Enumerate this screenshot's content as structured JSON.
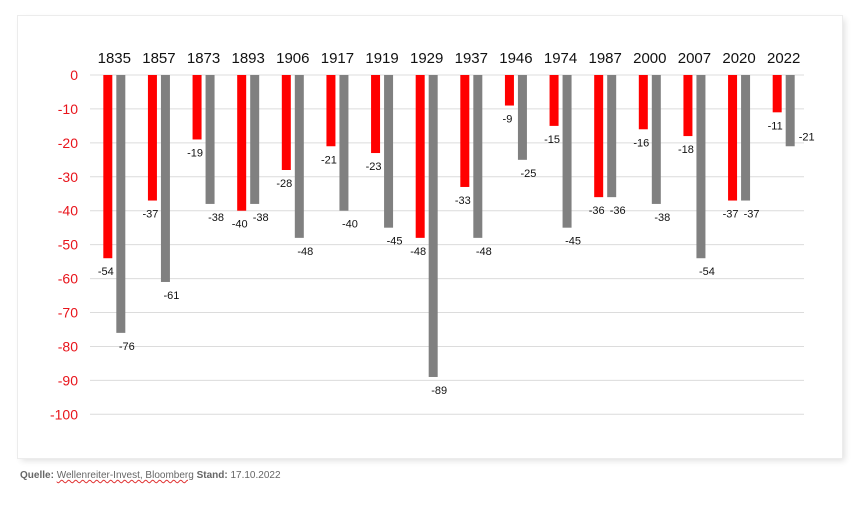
{
  "chart_data": {
    "type": "bar",
    "title": "",
    "xlabel": "",
    "ylabel": "",
    "ylim": [
      -100,
      0
    ],
    "yticks": [
      0,
      -10,
      -20,
      -30,
      -40,
      -50,
      -60,
      -70,
      -80,
      -90,
      -100
    ],
    "categories": [
      "1835",
      "1857",
      "1873",
      "1893",
      "1906",
      "1917",
      "1919",
      "1929",
      "1937",
      "1946",
      "1974",
      "1987",
      "2000",
      "2007",
      "2020",
      "2022"
    ],
    "series": [
      {
        "name": "red",
        "color": "#ff0000",
        "values": [
          -54,
          -37,
          -19,
          -40,
          -28,
          -21,
          -23,
          -48,
          -33,
          -9,
          -15,
          -36,
          -16,
          -18,
          -37,
          -11
        ]
      },
      {
        "name": "gray",
        "color": "#808080",
        "values": [
          -76,
          -61,
          -38,
          -38,
          -48,
          -40,
          -45,
          -89,
          -48,
          -25,
          -45,
          -36,
          -38,
          -54,
          -37,
          -21
        ]
      }
    ],
    "grid": true,
    "legend": "none"
  },
  "source": {
    "label": "Quelle:",
    "text": "Wellenreiter-Invest, Bloomberg",
    "date_label": "Stand:",
    "date": "17.10.2022"
  }
}
